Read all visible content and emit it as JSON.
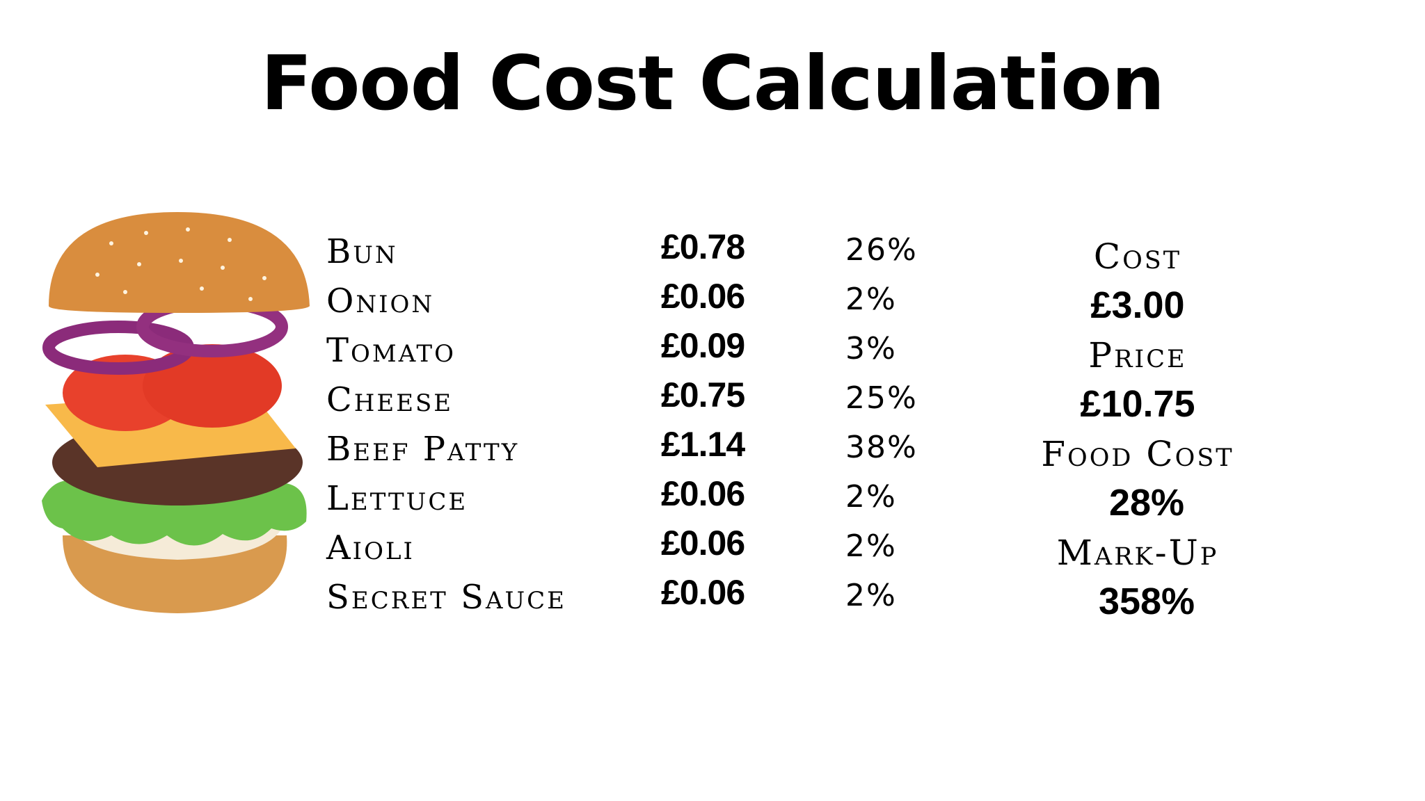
{
  "title": "Food Cost Calculation",
  "ingredients": [
    {
      "name": "Bun",
      "cost": "£0.78",
      "percent": "26%"
    },
    {
      "name": "Onion",
      "cost": "£0.06",
      "percent": "2%"
    },
    {
      "name": "Tomato",
      "cost": "£0.09",
      "percent": "3%"
    },
    {
      "name": "Cheese",
      "cost": "£0.75",
      "percent": "25%"
    },
    {
      "name": "Beef Patty",
      "cost": "£1.14",
      "percent": "38%"
    },
    {
      "name": "Lettuce",
      "cost": "£0.06",
      "percent": "2%"
    },
    {
      "name": "Aioli",
      "cost": "£0.06",
      "percent": "2%"
    },
    {
      "name": "Secret Sauce",
      "cost": "£0.06",
      "percent": "2%"
    }
  ],
  "summary": {
    "cost_label": "Cost",
    "cost_value": "£3.00",
    "price_label": "Price",
    "price_value": "£10.75",
    "food_cost_label": "Food Cost",
    "food_cost_value": "28%",
    "markup_label": "Mark-Up",
    "markup_value": "358%"
  },
  "image": {
    "icon": "burger-illustration"
  }
}
